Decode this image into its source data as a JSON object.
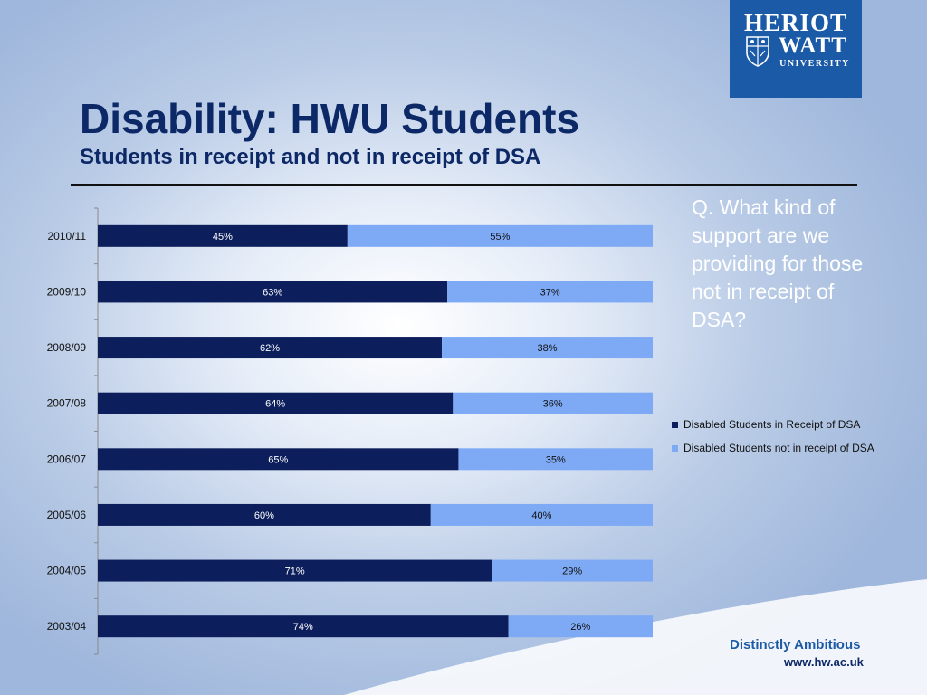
{
  "slide": {
    "title": "Disability: HWU Students",
    "subtitle": "Students in receipt and not in receipt of DSA",
    "question": "Q. What kind of support are we providing for those not in receipt of DSA?",
    "logo": {
      "line1": "HERIOT",
      "line2": "WATT",
      "line3": "UNIVERSITY",
      "icon": "crest-icon"
    },
    "tagline": "Distinctly Ambitious",
    "website": "www.hw.ac.uk"
  },
  "colors": {
    "in_receipt": "#0c1f5c",
    "not_in_receipt": "#7eaaf5",
    "brand": "#1b5aa6",
    "title": "#0c2866"
  },
  "chart_data": {
    "type": "bar",
    "orientation": "horizontal",
    "stacked": "percent",
    "categories": [
      "2010/11",
      "2009/10",
      "2008/09",
      "2007/08",
      "2006/07",
      "2005/06",
      "2004/05",
      "2003/04"
    ],
    "series": [
      {
        "name": "Disabled Students in Receipt of DSA",
        "values": [
          45,
          63,
          62,
          64,
          65,
          60,
          71,
          74
        ],
        "labels": [
          "45%",
          "63%",
          "62%",
          "64%",
          "65%",
          "60%",
          "71%",
          "74%"
        ]
      },
      {
        "name": "Disabled Students not in receipt of DSA",
        "values": [
          55,
          37,
          38,
          36,
          35,
          40,
          29,
          26
        ],
        "labels": [
          "55%",
          "37%",
          "38%",
          "36%",
          "35%",
          "40%",
          "29%",
          "26%"
        ]
      }
    ],
    "xlim": [
      0,
      100
    ],
    "grid": false,
    "legend_position": "right"
  }
}
